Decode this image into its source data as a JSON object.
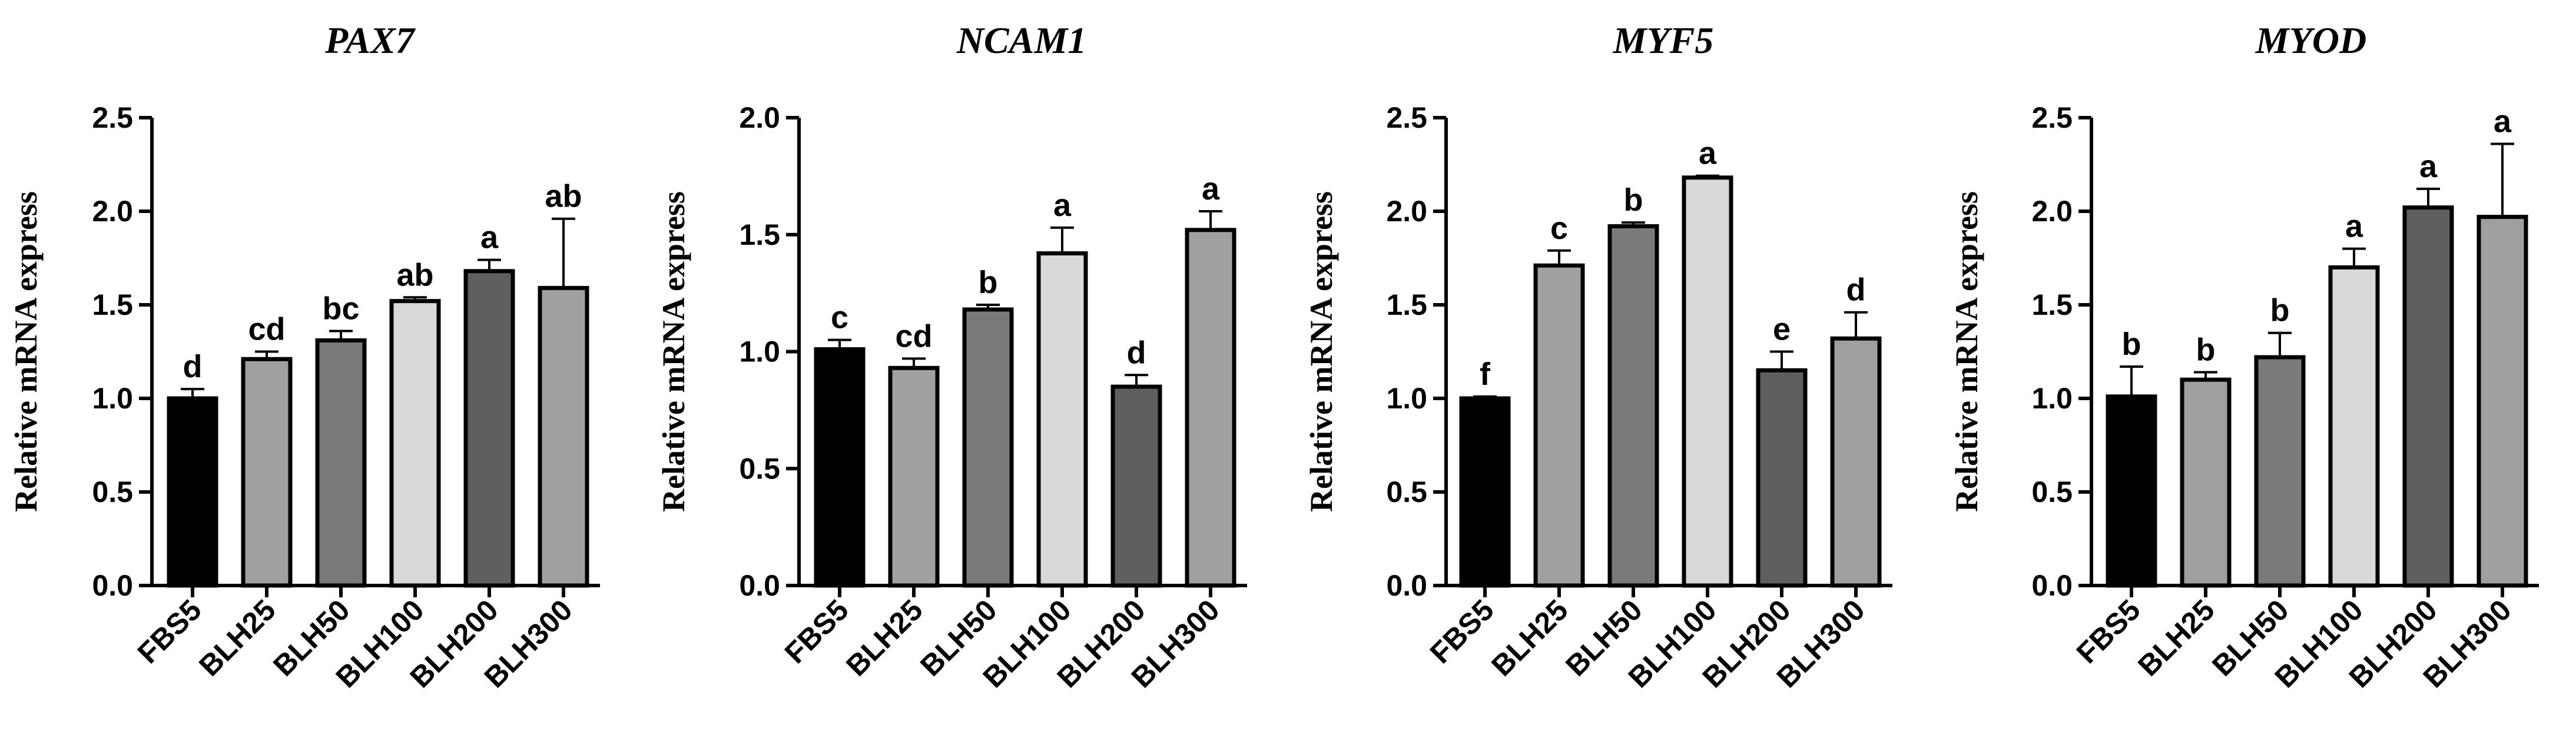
{
  "chart_data": [
    {
      "type": "bar",
      "title": "PAX7",
      "xlabel": "",
      "ylabel": "Relative mRNA express",
      "ylim": [
        0,
        2.5
      ],
      "yticks": [
        "0.0",
        "0.5",
        "1.0",
        "1.5",
        "2.0",
        "2.5"
      ],
      "categories": [
        "FBS5",
        "BLH25",
        "BLH50",
        "BLH100",
        "BLH200",
        "BLH300"
      ],
      "values": [
        1.0,
        1.21,
        1.31,
        1.52,
        1.68,
        1.59
      ],
      "errors": [
        0.05,
        0.04,
        0.05,
        0.02,
        0.06,
        0.37
      ],
      "labels": [
        "d",
        "cd",
        "bc",
        "ab",
        "a",
        "ab"
      ],
      "colors": [
        "#000000",
        "#a0a0a0",
        "#7a7a7a",
        "#d9d9d9",
        "#5f5f5f",
        "#a0a0a0"
      ]
    },
    {
      "type": "bar",
      "title": "NCAM1",
      "xlabel": "",
      "ylabel": "Relative mRNA express",
      "ylim": [
        0,
        2.0
      ],
      "yticks": [
        "0.0",
        "0.5",
        "1.0",
        "1.5",
        "2.0"
      ],
      "categories": [
        "FBS5",
        "BLH25",
        "BLH50",
        "BLH100",
        "BLH200",
        "BLH300"
      ],
      "values": [
        1.01,
        0.93,
        1.18,
        1.42,
        0.85,
        1.52
      ],
      "errors": [
        0.04,
        0.04,
        0.02,
        0.11,
        0.05,
        0.08
      ],
      "labels": [
        "c",
        "cd",
        "b",
        "a",
        "d",
        "a"
      ],
      "colors": [
        "#000000",
        "#a0a0a0",
        "#7a7a7a",
        "#d9d9d9",
        "#5f5f5f",
        "#a0a0a0"
      ]
    },
    {
      "type": "bar",
      "title": "MYF5",
      "xlabel": "",
      "ylabel": "Relative mRNA express",
      "ylim": [
        0,
        2.5
      ],
      "yticks": [
        "0.0",
        "0.5",
        "1.0",
        "1.5",
        "2.0",
        "2.5"
      ],
      "categories": [
        "FBS5",
        "BLH25",
        "BLH50",
        "BLH100",
        "BLH200",
        "BLH300"
      ],
      "values": [
        1.0,
        1.71,
        1.92,
        2.18,
        1.15,
        1.32
      ],
      "errors": [
        0.01,
        0.08,
        0.02,
        0.01,
        0.1,
        0.14
      ],
      "labels": [
        "f",
        "c",
        "b",
        "a",
        "e",
        "d"
      ],
      "colors": [
        "#000000",
        "#a0a0a0",
        "#7a7a7a",
        "#d9d9d9",
        "#5f5f5f",
        "#a0a0a0"
      ]
    },
    {
      "type": "bar",
      "title": "MYOD",
      "xlabel": "",
      "ylabel": "Relative mRNA express",
      "ylim": [
        0,
        2.5
      ],
      "yticks": [
        "0.0",
        "0.5",
        "1.0",
        "1.5",
        "2.0",
        "2.5"
      ],
      "categories": [
        "FBS5",
        "BLH25",
        "BLH50",
        "BLH100",
        "BLH200",
        "BLH300"
      ],
      "values": [
        1.01,
        1.1,
        1.22,
        1.7,
        2.02,
        1.97
      ],
      "errors": [
        0.16,
        0.04,
        0.13,
        0.1,
        0.1,
        0.39
      ],
      "labels": [
        "b",
        "b",
        "b",
        "a",
        "a",
        "a"
      ],
      "colors": [
        "#000000",
        "#a0a0a0",
        "#7a7a7a",
        "#d9d9d9",
        "#5f5f5f",
        "#a0a0a0"
      ]
    }
  ]
}
